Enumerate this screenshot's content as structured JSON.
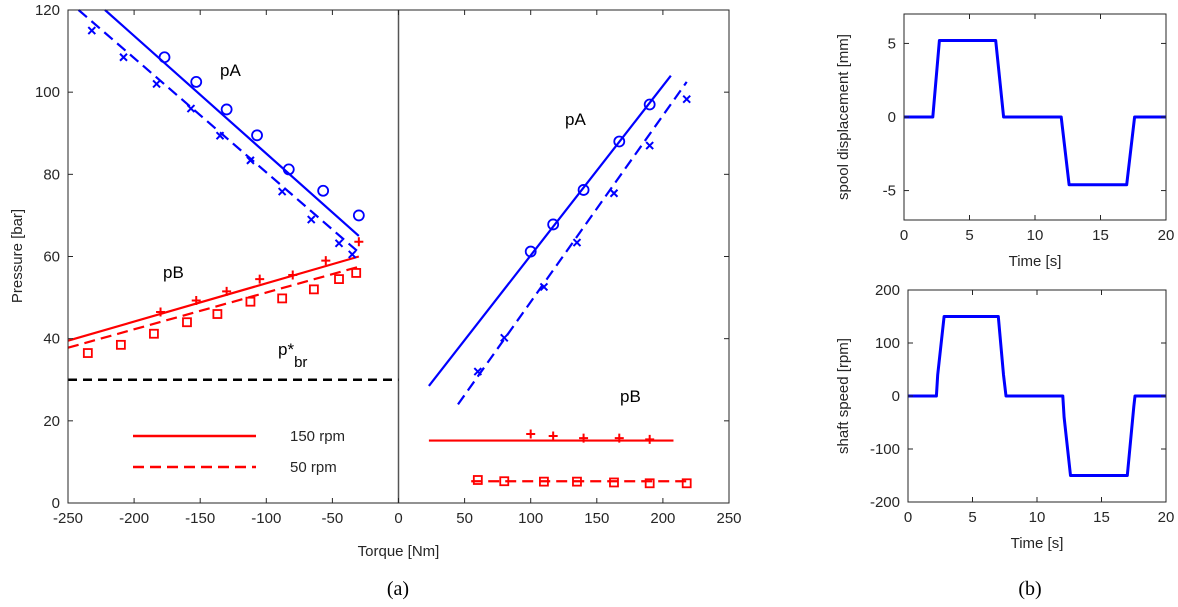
{
  "figure": {
    "caption_a": "(a)",
    "caption_b": "(b)"
  },
  "chart_data": [
    {
      "type": "scatter",
      "panel": "a",
      "xlabel": "Torque [Nm]",
      "ylabel": "Pressure [bar]",
      "xlim": [
        -250,
        250
      ],
      "ylim": [
        0,
        120
      ],
      "xticks": [
        "-250",
        "-200",
        "-150",
        "-100",
        "-50",
        "0",
        "50",
        "100",
        "150",
        "200",
        "250"
      ],
      "yticks": [
        "0",
        "20",
        "40",
        "60",
        "80",
        "100",
        "120"
      ],
      "grid": false,
      "annotations": [
        "pA",
        "pA",
        "pB",
        "pB",
        "p*br"
      ],
      "annotation_parts": {
        "p_star": "p*",
        "br_sub": "br"
      },
      "legend": {
        "placement": "bottom-left",
        "entries": [
          "150 rpm",
          "50 rpm"
        ]
      },
      "colors": {
        "pA": "#0000ff",
        "pB": "#ff0000",
        "reference": "#000000"
      },
      "series": [
        {
          "label": "pA",
          "speed": "150 rpm",
          "marker": "o",
          "x": [
            -177,
            -153,
            -130,
            -107,
            -83,
            -57,
            -30
          ],
          "y": [
            108.5,
            102.5,
            95.8,
            89.5,
            81.2,
            76,
            70
          ]
        },
        {
          "label": "pA",
          "speed": "50 rpm",
          "marker": "x",
          "x": [
            -232,
            -208,
            -183,
            -157,
            -135,
            -112,
            -88,
            -66,
            -45,
            -35
          ],
          "y": [
            115,
            108.5,
            102,
            96,
            89.4,
            83.4,
            75.8,
            69,
            63.2,
            60.5
          ]
        },
        {
          "label": "pB",
          "speed": "150 rpm",
          "marker": "+",
          "x": [
            -180,
            -153,
            -130,
            -105,
            -80,
            -55,
            -30
          ],
          "y": [
            46.5,
            49.3,
            51.5,
            54.5,
            55.5,
            59,
            63.6
          ]
        },
        {
          "label": "pB",
          "speed": "50 rpm",
          "marker": "square",
          "x": [
            -235,
            -210,
            -185,
            -160,
            -137,
            -112,
            -88,
            -64,
            -45,
            -32
          ],
          "y": [
            36.5,
            38.5,
            41.2,
            44,
            46,
            49,
            49.8,
            52,
            54.5,
            56
          ]
        },
        {
          "label": "pA",
          "speed": "150 rpm",
          "marker": "o",
          "x": [
            100,
            117,
            140,
            167,
            190
          ],
          "y": [
            61.2,
            67.8,
            76.2,
            88,
            97
          ]
        },
        {
          "label": "pA",
          "speed": "50 rpm",
          "marker": "x",
          "x": [
            60,
            80,
            110,
            135,
            163,
            190,
            218
          ],
          "y": [
            32,
            40.2,
            52.6,
            63.4,
            75.4,
            87,
            98.3
          ]
        },
        {
          "label": "pB",
          "speed": "150 rpm",
          "marker": "+",
          "x": [
            100,
            117,
            140,
            167,
            190
          ],
          "y": [
            16.8,
            16.3,
            15.8,
            15.8,
            15.5
          ]
        },
        {
          "label": "pB",
          "speed": "50 rpm",
          "marker": "square",
          "x": [
            60,
            80,
            110,
            135,
            163,
            190,
            218
          ],
          "y": [
            5.6,
            5.3,
            5.2,
            5.2,
            5,
            4.8,
            4.8
          ]
        }
      ],
      "fit_lines": [
        {
          "label": "pA",
          "speed": "150 rpm",
          "x": [
            -222,
            -30
          ],
          "y": [
            120,
            65
          ]
        },
        {
          "label": "pA",
          "speed": "50 rpm",
          "x": [
            -242,
            -30
          ],
          "y": [
            120,
            61
          ]
        },
        {
          "label": "pB",
          "speed": "150 rpm",
          "x": [
            -250,
            -30
          ],
          "y": [
            39.5,
            60
          ]
        },
        {
          "label": "pB",
          "speed": "50 rpm",
          "x": [
            -250,
            -30
          ],
          "y": [
            37.8,
            57.5
          ]
        },
        {
          "label": "pA",
          "speed": "150 rpm",
          "x": [
            23,
            206
          ],
          "y": [
            28.5,
            104
          ]
        },
        {
          "label": "pA",
          "speed": "50 rpm",
          "x": [
            45,
            218
          ],
          "y": [
            24,
            102.5
          ]
        },
        {
          "label": "pB",
          "speed": "150 rpm",
          "x": [
            23,
            208
          ],
          "y": [
            15.2,
            15.2
          ]
        },
        {
          "label": "pB",
          "speed": "50 rpm",
          "x": [
            55,
            220
          ],
          "y": [
            5.3,
            5.3
          ]
        }
      ],
      "reference_line": {
        "label": "p*br",
        "y": 30,
        "x": [
          -250,
          0
        ]
      }
    },
    {
      "type": "line",
      "panel": "b-top",
      "xlabel": "Time [s]",
      "ylabel": "spool displacement [mm]",
      "xlim": [
        0,
        20
      ],
      "ylim": [
        -7,
        7
      ],
      "xticks": [
        "0",
        "5",
        "10",
        "15",
        "20"
      ],
      "yticks": [
        "-5",
        "0",
        "5"
      ],
      "color": "#0000ff",
      "x": [
        0,
        2.2,
        2.7,
        7,
        7.6,
        12,
        12.6,
        17,
        17.6,
        20
      ],
      "y": [
        0,
        0,
        5.2,
        5.2,
        0,
        0,
        -4.6,
        -4.6,
        0,
        0
      ]
    },
    {
      "type": "line",
      "panel": "b-bottom",
      "xlabel": "Time [s]",
      "ylabel": "shaft speed [rpm]",
      "xlim": [
        0,
        20
      ],
      "ylim": [
        -200,
        200
      ],
      "xticks": [
        "0",
        "5",
        "10",
        "15",
        "20"
      ],
      "yticks": [
        "-200",
        "-100",
        "0",
        "100",
        "200"
      ],
      "color": "#0000ff",
      "x": [
        0,
        2.2,
        2.3,
        2.8,
        7,
        7.4,
        7.6,
        12,
        12.1,
        12.6,
        17,
        17.5,
        17.6,
        20
      ],
      "y": [
        0,
        0,
        40,
        150,
        150,
        40,
        0,
        0,
        -40,
        -150,
        -150,
        -20,
        0,
        0
      ]
    }
  ]
}
